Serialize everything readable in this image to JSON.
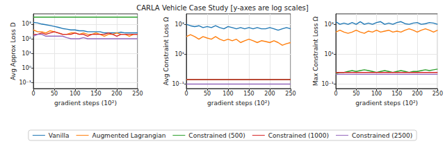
{
  "chart_data": [
    {
      "type": "line",
      "log": "y",
      "grid": true,
      "x": [
        0,
        10,
        20,
        30,
        40,
        50,
        60,
        70,
        80,
        90,
        100,
        110,
        120,
        130,
        140,
        150,
        160,
        170,
        180,
        190,
        200,
        210,
        220,
        230,
        240,
        250
      ],
      "xlabel": "gradient steps (10²)",
      "ylabel": "Avg Approx Loss D",
      "xlim": [
        0,
        250
      ],
      "xticks": [
        0,
        50,
        100,
        150,
        200,
        250
      ],
      "ylim": [
        0.04,
        5000
      ],
      "yticks": [
        {
          "value": 0.1,
          "label": "10⁻¹"
        },
        {
          "value": 1,
          "label": "10⁰"
        },
        {
          "value": 10,
          "label": "10¹"
        },
        {
          "value": 100,
          "label": "10²"
        },
        {
          "value": 1000,
          "label": "10³"
        }
      ],
      "series": [
        {
          "name": "Vanilla",
          "color": "#1f77b4",
          "values": [
            1300,
            1200,
            1000,
            900,
            800,
            700,
            600,
            500,
            450,
            400,
            400,
            350,
            350,
            300,
            300,
            300,
            300,
            250,
            250,
            250,
            250,
            280,
            250,
            250,
            250,
            250
          ]
        },
        {
          "name": "Augmented Lagrangian",
          "color": "#ff7f0e",
          "values": [
            400,
            300,
            300,
            250,
            350,
            300,
            250,
            200,
            200,
            250,
            250,
            200,
            250,
            200,
            200,
            250,
            200,
            150,
            200,
            200,
            250,
            200,
            200,
            150,
            200,
            200
          ]
        },
        {
          "name": "Constrained (500)",
          "color": "#2ca02c",
          "values": [
            3000,
            3000,
            3000,
            3000,
            3000,
            3000,
            3000,
            3000,
            3000,
            3000,
            3000,
            3000,
            3000,
            3000,
            3000,
            3000,
            3000,
            3000,
            3000,
            3000,
            3000,
            3000,
            3000,
            3000,
            3000,
            3000
          ]
        },
        {
          "name": "Constrained (1000)",
          "color": "#d62728",
          "values": [
            200,
            200,
            250,
            200,
            250,
            300,
            250,
            200,
            200,
            200,
            250,
            200,
            200,
            150,
            200,
            200,
            200,
            200,
            250,
            200,
            150,
            200,
            200,
            200,
            200,
            200
          ]
        },
        {
          "name": "Constrained (2500)",
          "color": "#9467bd",
          "values": [
            150,
            200,
            200,
            150,
            150,
            150,
            150,
            150,
            120,
            100,
            100,
            100,
            120,
            100,
            100,
            100,
            100,
            100,
            100,
            100,
            100,
            100,
            100,
            100,
            100,
            100
          ]
        }
      ]
    },
    {
      "type": "line",
      "log": "y",
      "grid": true,
      "title": "CARLA Vehicle Case Study [y-axes are log scales]",
      "legend": "bottom",
      "x": [
        0,
        10,
        20,
        30,
        40,
        50,
        60,
        70,
        80,
        90,
        100,
        110,
        120,
        130,
        140,
        150,
        160,
        170,
        180,
        190,
        200,
        210,
        220,
        230,
        240,
        250
      ],
      "xlabel": "gradient steps (10²)",
      "ylabel": "Avg Constraint Loss Ω",
      "xlim": [
        0,
        250
      ],
      "xticks": [
        0,
        50,
        100,
        150,
        200,
        250
      ],
      "ylim": [
        0.05,
        5000
      ],
      "yticks": [
        {
          "value": 0.1,
          "label": "10⁻¹"
        },
        {
          "value": 10,
          "label": "10¹"
        },
        {
          "value": 1000,
          "label": "10³"
        }
      ],
      "series": [
        {
          "name": "Vanilla",
          "color": "#1f77b4",
          "values": [
            1000,
            800,
            700,
            800,
            600,
            700,
            600,
            800,
            600,
            500,
            700,
            600,
            500,
            600,
            500,
            600,
            500,
            600,
            500,
            500,
            600,
            500,
            400,
            500,
            600,
            500
          ]
        },
        {
          "name": "Augmented Lagrangian",
          "color": "#ff7f0e",
          "values": [
            150,
            200,
            150,
            100,
            150,
            120,
            100,
            150,
            100,
            80,
            100,
            80,
            100,
            60,
            80,
            100,
            80,
            60,
            80,
            70,
            60,
            80,
            60,
            40,
            50,
            60
          ]
        },
        {
          "name": "Constrained (500)",
          "color": "#2ca02c",
          "values": [
            0.2,
            0.2,
            0.2,
            0.2,
            0.2,
            0.2,
            0.2,
            0.2,
            0.2,
            0.2,
            0.2,
            0.2,
            0.2,
            0.2,
            0.2,
            0.2,
            0.2,
            0.2,
            0.2,
            0.2,
            0.2,
            0.2,
            0.2,
            0.2,
            0.2,
            0.2
          ]
        },
        {
          "name": "Constrained (1000)",
          "color": "#d62728",
          "values": [
            0.2,
            0.2,
            0.2,
            0.2,
            0.2,
            0.2,
            0.2,
            0.2,
            0.2,
            0.2,
            0.2,
            0.2,
            0.2,
            0.2,
            0.2,
            0.2,
            0.2,
            0.2,
            0.2,
            0.2,
            0.2,
            0.2,
            0.2,
            0.2,
            0.2,
            0.2
          ]
        },
        {
          "name": "Constrained (2500)",
          "color": "#9467bd",
          "values": [
            0.1,
            0.1,
            0.1,
            0.1,
            0.1,
            0.1,
            0.1,
            0.1,
            0.1,
            0.1,
            0.1,
            0.1,
            0.1,
            0.1,
            0.1,
            0.1,
            0.1,
            0.1,
            0.1,
            0.1,
            0.1,
            0.1,
            0.1,
            0.1,
            0.1,
            0.1
          ]
        }
      ]
    },
    {
      "type": "line",
      "log": "y",
      "grid": true,
      "x": [
        0,
        10,
        20,
        30,
        40,
        50,
        60,
        70,
        80,
        90,
        100,
        110,
        120,
        130,
        140,
        150,
        160,
        170,
        180,
        190,
        200,
        210,
        220,
        230,
        240,
        250
      ],
      "xlabel": "gradient steps (10²)",
      "ylabel": "Max Constraint Loss Ω",
      "xlim": [
        0,
        250
      ],
      "xticks": [
        0,
        50,
        100,
        150,
        200,
        250
      ],
      "ylim": [
        0.05,
        5000
      ],
      "yticks": [
        {
          "value": 0.1,
          "label": "10⁻¹"
        },
        {
          "value": 10,
          "label": "10¹"
        },
        {
          "value": 1000,
          "label": "10³"
        }
      ],
      "series": [
        {
          "name": "Vanilla",
          "color": "#1f77b4",
          "values": [
            1500,
            1000,
            1200,
            1000,
            1300,
            1000,
            1500,
            1000,
            1200,
            1000,
            1300,
            1500,
            1000,
            1200,
            1000,
            1300,
            1500,
            1100,
            1000,
            1200,
            1300,
            1000,
            1100,
            1300,
            1200,
            1000
          ]
        },
        {
          "name": "Augmented Lagrangian",
          "color": "#ff7f0e",
          "values": [
            300,
            400,
            300,
            250,
            300,
            400,
            300,
            250,
            350,
            300,
            400,
            300,
            350,
            400,
            300,
            350,
            300,
            400,
            500,
            400,
            300,
            400,
            500,
            400,
            300,
            400
          ]
        },
        {
          "name": "Constrained (500)",
          "color": "#2ca02c",
          "values": [
            0.5,
            0.6,
            0.6,
            0.7,
            0.8,
            0.7,
            0.8,
            0.9,
            0.8,
            0.7,
            0.6,
            0.7,
            0.8,
            0.7,
            0.6,
            0.7,
            0.8,
            0.7,
            0.6,
            0.7,
            0.7,
            0.8,
            0.9,
            0.8,
            0.9,
            1
          ]
        },
        {
          "name": "Constrained (1000)",
          "color": "#d62728",
          "values": [
            0.6,
            0.6,
            0.6,
            0.6,
            0.6,
            0.6,
            0.6,
            0.6,
            0.6,
            0.6,
            0.6,
            0.6,
            0.6,
            0.6,
            0.6,
            0.6,
            0.6,
            0.6,
            0.6,
            0.6,
            0.6,
            0.6,
            0.6,
            0.6,
            0.6,
            0.6
          ]
        },
        {
          "name": "Constrained (2500)",
          "color": "#9467bd",
          "values": [
            0.45,
            0.45,
            0.45,
            0.45,
            0.45,
            0.45,
            0.45,
            0.45,
            0.45,
            0.45,
            0.45,
            0.45,
            0.45,
            0.45,
            0.45,
            0.45,
            0.45,
            0.45,
            0.45,
            0.45,
            0.45,
            0.45,
            0.45,
            0.45,
            0.45,
            0.45
          ]
        }
      ]
    }
  ]
}
